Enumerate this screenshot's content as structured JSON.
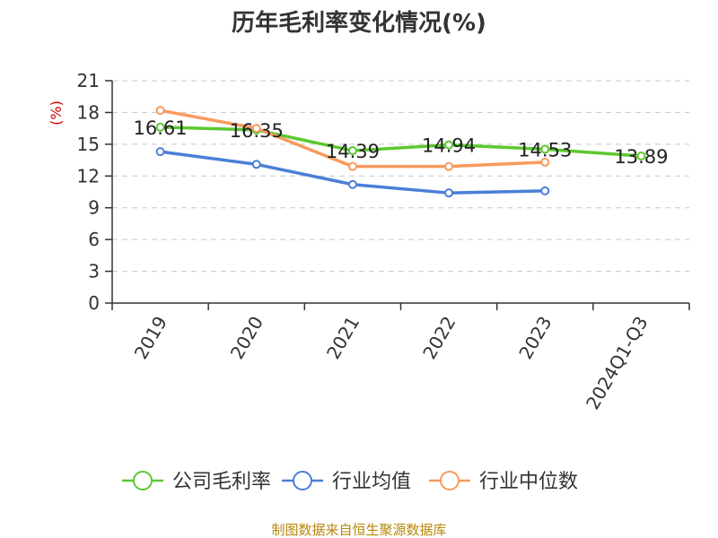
{
  "chart_data": {
    "type": "line",
    "title": "历年毛利率变化情况(%)",
    "ylabel": "(%)",
    "xlabel": "",
    "categories": [
      "2019",
      "2020",
      "2021",
      "2022",
      "2023",
      "2024Q1-Q3"
    ],
    "ylim": [
      0,
      21
    ],
    "yticks": [
      0,
      3,
      6,
      9,
      12,
      15,
      18,
      21
    ],
    "grid": true,
    "legend_position": "bottom",
    "series": [
      {
        "name": "公司毛利率",
        "color": "#5cc82f",
        "values": [
          16.61,
          16.35,
          14.39,
          14.94,
          14.53,
          13.89
        ],
        "labels": [
          "16.61",
          "16.35",
          "14.39",
          "14.94",
          "14.53",
          "13.89"
        ]
      },
      {
        "name": "行业均值",
        "color": "#4a7fd8",
        "values": [
          14.3,
          13.1,
          11.2,
          10.4,
          10.6,
          null
        ],
        "labels": []
      },
      {
        "name": "行业中位数",
        "color": "#f89a5e",
        "values": [
          18.2,
          16.5,
          12.9,
          12.9,
          13.3,
          null
        ],
        "labels": []
      }
    ],
    "source": "制图数据来自恒生聚源数据库"
  }
}
